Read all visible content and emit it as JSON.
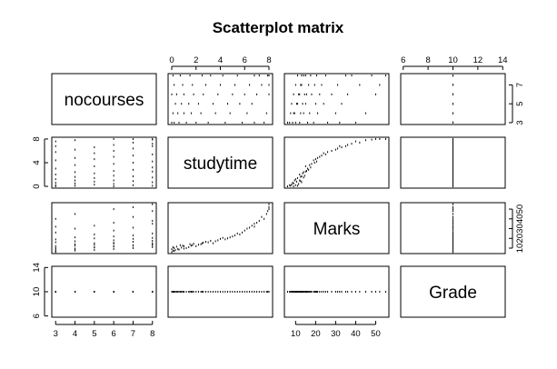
{
  "chart_data": {
    "type": "scatter",
    "subtype": "scatterplot-matrix",
    "title": "Scatterplot matrix",
    "variables": [
      "nocourses",
      "studytime",
      "Marks",
      "Grade"
    ],
    "axes": {
      "nocourses": {
        "range": [
          2.8,
          8.2
        ],
        "ticks": [
          3,
          4,
          5,
          6,
          7,
          8
        ],
        "right_ticks": [
          3,
          5,
          7
        ]
      },
      "studytime": {
        "range": [
          -0.3,
          8.3
        ],
        "ticks": [
          0,
          2,
          4,
          6,
          8
        ],
        "left_ticks": [
          0,
          4,
          8
        ]
      },
      "Marks": {
        "range": [
          4.4,
          56.6
        ],
        "ticks": [
          10,
          20,
          30,
          40,
          50
        ]
      },
      "Grade": {
        "range": [
          5.8,
          14.2
        ],
        "ticks": [
          6,
          8,
          10,
          12,
          14
        ],
        "left_ticks": [
          6,
          10,
          14
        ]
      }
    },
    "tick_positions": {
      "top": [
        "studytime",
        "Grade"
      ],
      "bottom": [
        "nocourses",
        "Marks"
      ],
      "left": [
        "studytime",
        "Grade"
      ],
      "right": [
        "nocourses",
        "Marks"
      ]
    },
    "grade_value": 10,
    "observations": [
      [
        3,
        0.0,
        6.0
      ],
      [
        3,
        0.2,
        7.0
      ],
      [
        3,
        0.6,
        8.5
      ],
      [
        3,
        1.2,
        10.0
      ],
      [
        3,
        2.0,
        12.0
      ],
      [
        3,
        3.0,
        16.0
      ],
      [
        3,
        4.4,
        19.0
      ],
      [
        3,
        5.8,
        26.0
      ],
      [
        3,
        6.8,
        32.0
      ],
      [
        3,
        7.6,
        40.0
      ],
      [
        4,
        0.1,
        7.5
      ],
      [
        4,
        0.5,
        9.0
      ],
      [
        4,
        1.0,
        9.5
      ],
      [
        4,
        1.6,
        12.5
      ],
      [
        4,
        2.4,
        14.0
      ],
      [
        4,
        3.6,
        17.0
      ],
      [
        4,
        4.8,
        21.0
      ],
      [
        4,
        6.2,
        30.0
      ],
      [
        4,
        7.8,
        45.0
      ],
      [
        5,
        0.3,
        8.0
      ],
      [
        5,
        0.8,
        10.5
      ],
      [
        5,
        1.4,
        11.0
      ],
      [
        5,
        2.2,
        13.5
      ],
      [
        5,
        3.4,
        15.0
      ],
      [
        5,
        4.6,
        20.0
      ],
      [
        5,
        5.6,
        24.0
      ],
      [
        5,
        6.6,
        33.0
      ],
      [
        6,
        0.0,
        9.0
      ],
      [
        6,
        0.4,
        11.5
      ],
      [
        6,
        1.0,
        12.0
      ],
      [
        6,
        1.8,
        14.5
      ],
      [
        6,
        2.6,
        15.5
      ],
      [
        6,
        3.8,
        18.0
      ],
      [
        6,
        5.0,
        22.0
      ],
      [
        6,
        6.0,
        28.0
      ],
      [
        6,
        7.0,
        36.0
      ],
      [
        6,
        8.0,
        50.0
      ],
      [
        7,
        0.2,
        10.0
      ],
      [
        7,
        0.9,
        12.5
      ],
      [
        7,
        1.7,
        13.0
      ],
      [
        7,
        2.8,
        16.5
      ],
      [
        7,
        4.0,
        19.5
      ],
      [
        7,
        5.2,
        23.0
      ],
      [
        7,
        6.4,
        31.0
      ],
      [
        7,
        7.4,
        42.0
      ],
      [
        7,
        8.0,
        52.0
      ],
      [
        8,
        0.1,
        11.0
      ],
      [
        8,
        0.7,
        13.0
      ],
      [
        8,
        1.5,
        14.0
      ],
      [
        8,
        2.5,
        15.0
      ],
      [
        8,
        3.2,
        17.5
      ],
      [
        8,
        4.2,
        20.5
      ],
      [
        8,
        5.4,
        25.0
      ],
      [
        8,
        6.8,
        35.0
      ],
      [
        8,
        7.2,
        38.0
      ],
      [
        8,
        7.9,
        48.0
      ],
      [
        8,
        8.0,
        55.0
      ]
    ]
  }
}
